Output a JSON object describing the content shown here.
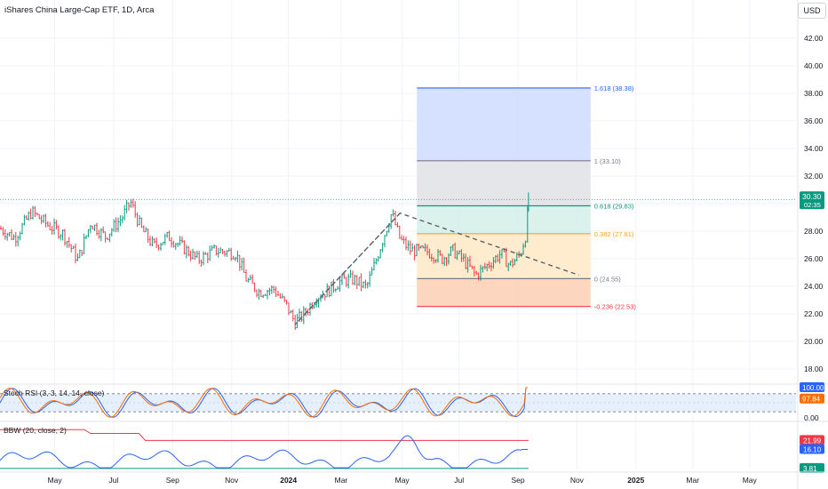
{
  "header": {
    "title": "iShares China Large-Cap ETF, 1D, Arca",
    "currency": "USD"
  },
  "chart_data": {
    "type": "candlestick",
    "x_ticks": [
      "May",
      "Jul",
      "Sep",
      "Nov",
      "2024",
      "Mar",
      "May",
      "Jul",
      "Sep",
      "Nov",
      "2025",
      "Mar",
      "May"
    ],
    "y_ticks": [
      "42.00",
      "40.00",
      "38.00",
      "36.00",
      "34.00",
      "32.00",
      "30.00",
      "28.00",
      "26.00",
      "24.00",
      "22.00",
      "20.00",
      "18.00"
    ],
    "ylim": [
      16.9,
      43.6
    ],
    "last_price": {
      "value": "30.30",
      "countdown": "02:35"
    },
    "price_path": [
      [
        0,
        28.2
      ],
      [
        0.7,
        27.5
      ],
      [
        1.5,
        29.4
      ],
      [
        2.3,
        28.4
      ],
      [
        3.0,
        27.8
      ],
      [
        3.7,
        25.9
      ],
      [
        4.3,
        28.6
      ],
      [
        5.0,
        27.6
      ],
      [
        5.8,
        29.0
      ],
      [
        6.2,
        30.1
      ],
      [
        6.7,
        28.2
      ],
      [
        7.3,
        26.9
      ],
      [
        8.0,
        27.6
      ],
      [
        8.7,
        26.8
      ],
      [
        9.4,
        25.9
      ],
      [
        10.2,
        26.6
      ],
      [
        11.2,
        26.4
      ],
      [
        11.7,
        24.5
      ],
      [
        12.3,
        23.6
      ],
      [
        13.0,
        23.8
      ],
      [
        13.6,
        22.6
      ],
      [
        14.0,
        21.4
      ],
      [
        14.4,
        21.9
      ],
      [
        15.0,
        23.2
      ],
      [
        15.6,
        23.7
      ],
      [
        16.2,
        24.4
      ],
      [
        16.8,
        24.5
      ],
      [
        17.4,
        23.9
      ],
      [
        17.8,
        25.6
      ],
      [
        18.2,
        27.5
      ],
      [
        18.6,
        29.3
      ],
      [
        19.0,
        27.4
      ],
      [
        19.5,
        26.6
      ],
      [
        20.3,
        26.5
      ],
      [
        21.0,
        26.0
      ],
      [
        21.5,
        26.6
      ],
      [
        22.0,
        25.9
      ],
      [
        22.6,
        24.8
      ],
      [
        23.2,
        25.6
      ],
      [
        23.8,
        26.4
      ],
      [
        24.2,
        25.5
      ],
      [
        24.7,
        26.3
      ],
      [
        25.0,
        27.9
      ],
      [
        25.1,
        30.3
      ]
    ],
    "trend_line": [
      [
        19.0,
        29.3
      ],
      [
        14.0,
        21.2
      ],
      [
        19.0,
        29.3
      ],
      [
        27.5,
        24.8
      ]
    ],
    "fib": {
      "levels": [
        {
          "ratio": "1.618",
          "price": "38.38",
          "label": "1.618 (38.38)",
          "color": "#2962ff",
          "fill": "#cfdcff"
        },
        {
          "ratio": "1",
          "price": "33.10",
          "label": "1 (33.10)",
          "color": "#787b86",
          "fill": "#e1e2e5"
        },
        {
          "ratio": "0.618",
          "price": "29.83",
          "label": "0.618 (29.83)",
          "color": "#089981",
          "fill": "#d3efe9"
        },
        {
          "ratio": "0.382",
          "price": "27.81",
          "label": "0.382 (27.81)",
          "color": "#f7a21b",
          "fill": "#ffe9c7"
        },
        {
          "ratio": "0",
          "price": "24.55",
          "label": "0 (24.55)",
          "color": "#787b86",
          "fill": "#fbcfb4"
        },
        {
          "ratio": "-0.236",
          "price": "22.53",
          "label": "-0.236 (22.53)",
          "color": "#f23645",
          "fill": ""
        }
      ]
    },
    "stoch_rsi": {
      "label": "Stoch RSI (3, 3, 14, 14, close)",
      "y_ticks": [
        "0.00"
      ],
      "bands": [
        80,
        20
      ],
      "values": {
        "k": "100.00",
        "d": "97.84"
      },
      "colors": {
        "k": "#2962ff",
        "d": "#ff6d00"
      }
    },
    "bbw": {
      "label": "BBW (20, close, 2)",
      "values": {
        "highest": "21.99",
        "bbw": "16.10",
        "lowest": "3.81"
      },
      "colors": {
        "highest": "#f23645",
        "bbw": "#2962ff",
        "lowest": "#089981"
      }
    },
    "colors": {
      "up": "#089981",
      "down": "#f23645"
    }
  }
}
